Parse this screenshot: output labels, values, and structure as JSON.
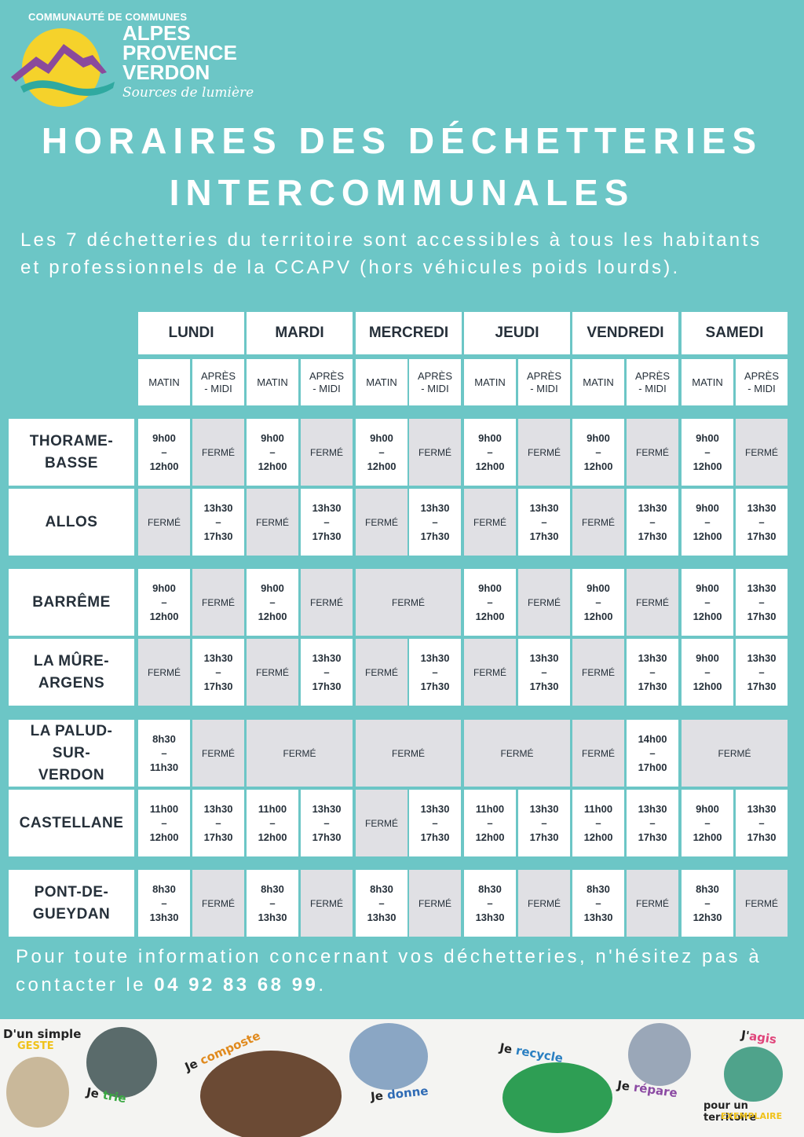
{
  "logo": {
    "org": "COMMUNAUTÉ DE COMMUNES",
    "name_lines": [
      "ALPES",
      "PROVENCE",
      "VERDON"
    ],
    "tagline": "Sources de lumière"
  },
  "title": [
    "HORAIRES DES DÉCHETTERIES",
    "INTERCOMMUNALES"
  ],
  "intro": "Les 7 déchetteries du territoire sont accessibles  à tous les habitants et professionnels de la CCAPV (hors véhicules poids lourds).",
  "days": [
    "LUNDI",
    "MARDI",
    "MERCREDI",
    "JEUDI",
    "VENDREDI",
    "SAMEDI"
  ],
  "slots": [
    "MATIN",
    "APRÈS - MIDI"
  ],
  "closed_label": "FERMÉ",
  "sites": [
    {
      "name": "THORAME-BASSE",
      "cells": [
        [
          "9h00 – 12h00",
          1
        ],
        [
          "FERMÉ",
          1
        ],
        [
          "9h00 – 12h00",
          1
        ],
        [
          "FERMÉ",
          1
        ],
        [
          "9h00 – 12h00",
          1
        ],
        [
          "FERMÉ",
          1
        ],
        [
          "9h00 – 12h00",
          1
        ],
        [
          "FERMÉ",
          1
        ],
        [
          "9h00 – 12h00",
          1
        ],
        [
          "FERMÉ",
          1
        ],
        [
          "9h00 – 12h00",
          1
        ],
        [
          "FERMÉ",
          1
        ]
      ]
    },
    {
      "name": "ALLOS",
      "cells": [
        [
          "FERMÉ",
          1
        ],
        [
          "13h30 – 17h30",
          1
        ],
        [
          "FERMÉ",
          1
        ],
        [
          "13h30 – 17h30",
          1
        ],
        [
          "FERMÉ",
          1
        ],
        [
          "13h30 – 17h30",
          1
        ],
        [
          "FERMÉ",
          1
        ],
        [
          "13h30 – 17h30",
          1
        ],
        [
          "FERMÉ",
          1
        ],
        [
          "13h30 – 17h30",
          1
        ],
        [
          "9h00 – 12h00",
          1
        ],
        [
          "13h30 – 17h30",
          1
        ]
      ]
    },
    {
      "name": "BARRÊME",
      "cells": [
        [
          "9h00 – 12h00",
          1
        ],
        [
          "FERMÉ",
          1
        ],
        [
          "9h00 – 12h00",
          1
        ],
        [
          "FERMÉ",
          1
        ],
        [
          "FERMÉ",
          2
        ],
        [
          "9h00 – 12h00",
          1
        ],
        [
          "FERMÉ",
          1
        ],
        [
          "9h00 – 12h00",
          1
        ],
        [
          "FERMÉ",
          1
        ],
        [
          "9h00 – 12h00",
          1
        ],
        [
          "13h30 – 17h30",
          1
        ]
      ]
    },
    {
      "name": "LA MÛRE-ARGENS",
      "cells": [
        [
          "FERMÉ",
          1
        ],
        [
          "13h30 – 17h30",
          1
        ],
        [
          "FERMÉ",
          1
        ],
        [
          "13h30 – 17h30",
          1
        ],
        [
          "FERMÉ",
          1
        ],
        [
          "13h30 – 17h30",
          1
        ],
        [
          "FERMÉ",
          1
        ],
        [
          "13h30 – 17h30",
          1
        ],
        [
          "FERMÉ",
          1
        ],
        [
          "13h30 – 17h30",
          1
        ],
        [
          "9h00 – 12h00",
          1
        ],
        [
          "13h30 – 17h30",
          1
        ]
      ]
    },
    {
      "name": "LA PALUD-SUR-VERDON",
      "cells": [
        [
          "8h30 – 11h30",
          1
        ],
        [
          "FERMÉ",
          1
        ],
        [
          "FERMÉ",
          2
        ],
        [
          "FERMÉ",
          2
        ],
        [
          "FERMÉ",
          2
        ],
        [
          "FERMÉ",
          1
        ],
        [
          "14h00 – 17h00",
          1
        ],
        [
          "FERMÉ",
          2
        ]
      ]
    },
    {
      "name": "CASTELLANE",
      "cells": [
        [
          "11h00 – 12h00",
          1
        ],
        [
          "13h30 – 17h30",
          1
        ],
        [
          "11h00 – 12h00",
          1
        ],
        [
          "13h30 – 17h30",
          1
        ],
        [
          "FERMÉ",
          1
        ],
        [
          "13h30 – 17h30",
          1
        ],
        [
          "11h00 – 12h00",
          1
        ],
        [
          "13h30 – 17h30",
          1
        ],
        [
          "11h00 – 12h00",
          1
        ],
        [
          "13h30 – 17h30",
          1
        ],
        [
          "9h00 – 12h00",
          1
        ],
        [
          "13h30 – 17h30",
          1
        ]
      ]
    },
    {
      "name": "PONT-DE-GUEYDAN",
      "cells": [
        [
          "8h30 – 13h30",
          1
        ],
        [
          "FERMÉ",
          1
        ],
        [
          "8h30 – 13h30",
          1
        ],
        [
          "FERMÉ",
          1
        ],
        [
          "8h30 – 13h30",
          1
        ],
        [
          "FERMÉ",
          1
        ],
        [
          "8h30 – 13h30",
          1
        ],
        [
          "FERMÉ",
          1
        ],
        [
          "8h30 – 13h30",
          1
        ],
        [
          "FERMÉ",
          1
        ],
        [
          "8h30 – 12h30",
          1
        ],
        [
          "FERMÉ",
          1
        ]
      ]
    }
  ],
  "contact": {
    "text": "Pour toute information concernant vos déchetteries, n'hésitez pas à contacter le ",
    "phone": "04 92 83 68 99",
    "end": "."
  },
  "strip": {
    "l1a": "D'un simple",
    "l1b": "GESTE",
    "l2a": "Je",
    "l2b": "trie",
    "l3a": "Je",
    "l3b": "composte",
    "l4a": "Je",
    "l4b": "donne",
    "l5a": "Je",
    "l5b": "recycle",
    "l6a": "Je",
    "l6b": "répare",
    "l7a": "J'",
    "l7b": "agis",
    "l8a": "pour un territoire",
    "l8b": "EXEMPLAIRE"
  }
}
